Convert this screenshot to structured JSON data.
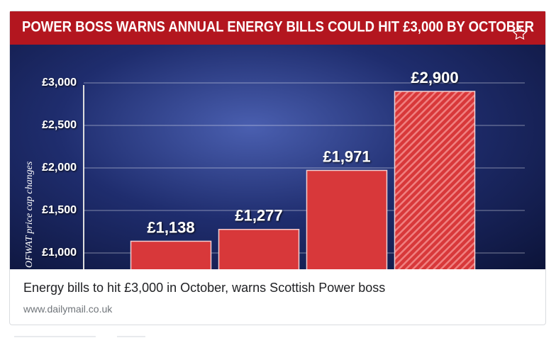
{
  "chart_data": {
    "type": "bar",
    "title": "POWER BOSS WARNS ANNUAL ENERGY BILLS COULD HIT £3,000 BY OCTOBER",
    "ylabel": "OFWAT price cap changes",
    "categories": [
      null,
      null,
      null,
      null
    ],
    "values": [
      1138,
      1277,
      1971,
      2900
    ],
    "value_labels": [
      "£1,138",
      "£1,277",
      "£1,971",
      "£2,900"
    ],
    "color": "#d8383a",
    "hatched": [
      false,
      false,
      false,
      true
    ],
    "ylim": [
      850,
      3050
    ],
    "yticks": [
      {
        "value": 1000,
        "label": "£1,000"
      },
      {
        "value": 1500,
        "label": "£1,500"
      },
      {
        "value": 2000,
        "label": "£2,000"
      },
      {
        "value": 2500,
        "label": "£2,500"
      },
      {
        "value": 3000,
        "label": "£3,000"
      }
    ],
    "grid": true
  },
  "card": {
    "headline": "Energy bills to hit £3,000 in October, warns Scottish Power boss",
    "source": "www.dailymail.co.uk"
  }
}
